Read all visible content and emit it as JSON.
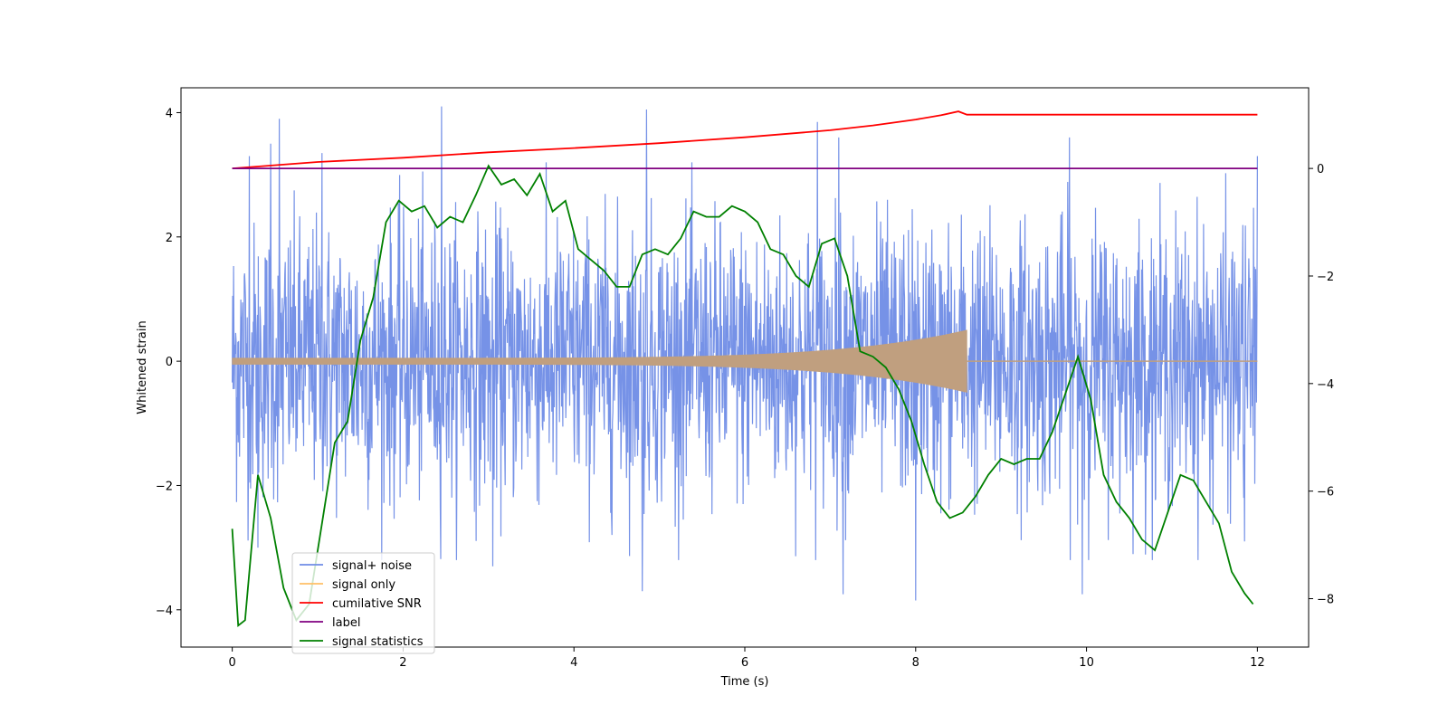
{
  "chart_data": {
    "type": "line",
    "xlabel": "Time (s)",
    "ylabel": "Whitened strain",
    "xlim": [
      -0.6,
      12.6
    ],
    "ylim": [
      -4.6,
      4.4
    ],
    "ylim_right": [
      -8.9,
      1.5
    ],
    "x_ticks": [
      0,
      2,
      4,
      6,
      8,
      10,
      12
    ],
    "y_ticks": [
      -4,
      -2,
      0,
      2,
      4
    ],
    "y_ticks_right": [
      -8,
      -6,
      -4,
      -2,
      0
    ],
    "legend": {
      "location": "lower-left",
      "entries": [
        "signal+ noise",
        "signal only",
        "cumilative SNR",
        "label",
        "signal statistics"
      ]
    },
    "colors": {
      "signal_noise": "#6f8ce6",
      "signal_only": "#ffbf66",
      "signal_overlap": "#c09f7f",
      "cumulative_snr": "#ff0000",
      "label": "#800080",
      "signal_statistics": "#008000"
    },
    "series": [
      {
        "name": "signal+ noise",
        "axis": "left",
        "description": "white-ish noise, amplitude roughly within -3.5..3.5",
        "x_range": [
          0,
          12
        ],
        "amplitude_std": 1.1,
        "peak_points": [
          [
            0.2,
            3.3
          ],
          [
            0.45,
            3.5
          ],
          [
            0.55,
            3.9
          ],
          [
            1.05,
            3.35
          ],
          [
            2.45,
            4.1
          ],
          [
            4.85,
            4.05
          ],
          [
            6.85,
            3.85
          ],
          [
            7.1,
            3.6
          ],
          [
            9.8,
            3.6
          ],
          [
            12.0,
            3.3
          ],
          [
            0.3,
            -3.0
          ],
          [
            2.45,
            -4.15
          ],
          [
            3.05,
            -3.3
          ],
          [
            4.8,
            -3.7
          ],
          [
            7.15,
            -3.75
          ],
          [
            8.0,
            -3.85
          ],
          [
            9.95,
            -3.75
          ],
          [
            11.85,
            -2.9
          ]
        ]
      },
      {
        "name": "signal only",
        "axis": "left",
        "description": "chirp from t=0 to merger at t=8.6, then flat",
        "merger_time": 8.6,
        "amplitude_start": 0.05,
        "amplitude_merger": 0.5
      },
      {
        "name": "cumilative SNR",
        "axis": "right",
        "x": [
          0,
          1,
          2,
          3,
          4,
          5,
          6,
          7,
          7.5,
          8,
          8.3,
          8.5,
          8.6,
          9,
          10,
          11,
          12
        ],
        "y": [
          0.0,
          0.12,
          0.2,
          0.3,
          0.38,
          0.47,
          0.58,
          0.71,
          0.8,
          0.91,
          0.99,
          1.06,
          1.0,
          1.0,
          1.0,
          1.0,
          1.0
        ]
      },
      {
        "name": "label",
        "axis": "right",
        "x": [
          0,
          12
        ],
        "y": [
          0,
          0
        ]
      },
      {
        "name": "signal statistics",
        "axis": "right",
        "x": [
          0,
          0.07,
          0.15,
          0.3,
          0.45,
          0.6,
          0.75,
          0.9,
          1.05,
          1.2,
          1.35,
          1.5,
          1.65,
          1.8,
          1.95,
          2.1,
          2.25,
          2.4,
          2.55,
          2.7,
          2.85,
          3.0,
          3.15,
          3.3,
          3.45,
          3.6,
          3.75,
          3.9,
          4.05,
          4.2,
          4.35,
          4.5,
          4.65,
          4.8,
          4.95,
          5.1,
          5.25,
          5.4,
          5.55,
          5.7,
          5.85,
          6.0,
          6.15,
          6.3,
          6.45,
          6.6,
          6.75,
          6.9,
          7.05,
          7.2,
          7.35,
          7.5,
          7.65,
          7.8,
          7.95,
          8.1,
          8.25,
          8.4,
          8.55,
          8.7,
          8.85,
          9.0,
          9.15,
          9.3,
          9.45,
          9.6,
          9.75,
          9.9,
          10.05,
          10.2,
          10.35,
          10.5,
          10.65,
          10.8,
          10.95,
          11.1,
          11.25,
          11.4,
          11.55,
          11.7,
          11.85,
          11.95
        ],
        "y": [
          -6.7,
          -8.5,
          -8.4,
          -5.7,
          -6.5,
          -7.8,
          -8.4,
          -8.1,
          -6.6,
          -5.1,
          -4.7,
          -3.2,
          -2.4,
          -1.0,
          -0.6,
          -0.8,
          -0.7,
          -1.1,
          -0.9,
          -1.0,
          -0.5,
          0.05,
          -0.3,
          -0.2,
          -0.5,
          -0.1,
          -0.8,
          -0.6,
          -1.5,
          -1.7,
          -1.9,
          -2.2,
          -2.2,
          -1.6,
          -1.5,
          -1.6,
          -1.3,
          -0.8,
          -0.9,
          -0.9,
          -0.7,
          -0.8,
          -1.0,
          -1.5,
          -1.6,
          -2.0,
          -2.2,
          -1.4,
          -1.3,
          -2.0,
          -3.4,
          -3.5,
          -3.7,
          -4.1,
          -4.7,
          -5.5,
          -6.2,
          -6.5,
          -6.4,
          -6.1,
          -5.7,
          -5.4,
          -5.5,
          -5.4,
          -5.4,
          -4.9,
          -4.2,
          -3.5,
          -4.3,
          -5.7,
          -6.2,
          -6.5,
          -6.9,
          -7.1,
          -6.4,
          -5.7,
          -5.8,
          -6.2,
          -6.6,
          -7.5,
          -7.9,
          -8.1
        ]
      }
    ]
  }
}
